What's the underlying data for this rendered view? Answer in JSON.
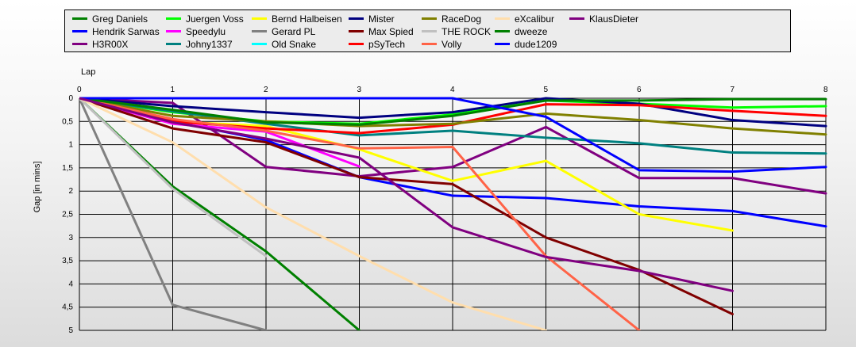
{
  "chart_data": {
    "type": "line",
    "xlabel": "Lap",
    "ylabel": "Gap [in mins]",
    "x": [
      0,
      1,
      2,
      3,
      4,
      5,
      6,
      7,
      8
    ],
    "xlim": [
      0,
      8
    ],
    "ylim": [
      0,
      5
    ],
    "y_inverted": true,
    "x_ticks": [
      "0",
      "1",
      "2",
      "3",
      "4",
      "5",
      "6",
      "7",
      "8"
    ],
    "y_ticks": [
      "0",
      "0,5",
      "1",
      "1,5",
      "2",
      "2,5",
      "3",
      "3,5",
      "4",
      "4,5",
      "5"
    ],
    "grid": true,
    "legend_position": "top",
    "series": [
      {
        "name": "Greg Daniels",
        "color": "#008000",
        "values": [
          0,
          1.9,
          3.3,
          5.0,
          null,
          null,
          null,
          null,
          null
        ]
      },
      {
        "name": "Hendrik Sarwas",
        "color": "#0000ff",
        "values": [
          0,
          0.5,
          0.9,
          1.7,
          2.1,
          2.15,
          2.33,
          2.43,
          2.76
        ]
      },
      {
        "name": "H3R00X",
        "color": "#800080",
        "values": [
          0,
          0.1,
          1.48,
          1.68,
          1.48,
          0.62,
          1.72,
          1.72,
          2.05
        ]
      },
      {
        "name": "Juergen Voss",
        "color": "#00ff00",
        "values": [
          0,
          0.3,
          0.5,
          0.55,
          0.35,
          0.05,
          0.12,
          0.2,
          0.17
        ]
      },
      {
        "name": "Speedylu",
        "color": "#ff00ff",
        "values": [
          0,
          0.55,
          0.72,
          1.47,
          null,
          null,
          null,
          null,
          null
        ]
      },
      {
        "name": "Johny1337",
        "color": "#008080",
        "values": [
          0,
          0.28,
          0.55,
          0.8,
          0.7,
          0.85,
          0.97,
          1.17,
          1.19
        ]
      },
      {
        "name": "Bernd Halbeisen",
        "color": "#ffff00",
        "values": [
          0,
          0.5,
          0.6,
          1.1,
          1.78,
          1.35,
          2.5,
          2.85,
          null
        ]
      },
      {
        "name": "Gerard PL",
        "color": "#808080",
        "values": [
          0,
          4.45,
          5.0,
          null,
          null,
          null,
          null,
          null,
          null
        ]
      },
      {
        "name": "Old Snake",
        "color": "#00ffff",
        "values": [
          0,
          null,
          null,
          null,
          null,
          null,
          null,
          null,
          null
        ]
      },
      {
        "name": "Mister",
        "color": "#000080",
        "values": [
          0,
          0.17,
          0.3,
          0.42,
          0.3,
          0.0,
          0.12,
          0.47,
          0.6
        ]
      },
      {
        "name": "Max Spied",
        "color": "#800000",
        "values": [
          0,
          0.65,
          0.95,
          1.7,
          1.85,
          3.0,
          3.7,
          4.65,
          null
        ]
      },
      {
        "name": "pSyTech",
        "color": "#ff0000",
        "values": [
          0,
          0.5,
          0.65,
          0.75,
          0.57,
          0.13,
          0.15,
          0.27,
          0.38
        ]
      },
      {
        "name": "RaceDog",
        "color": "#808000",
        "values": [
          0,
          0.38,
          0.5,
          0.6,
          0.55,
          0.33,
          0.47,
          0.65,
          0.78
        ]
      },
      {
        "name": "THE ROCK",
        "color": "#c0c0c0",
        "values": [
          0,
          1.95,
          3.4,
          null,
          null,
          null,
          null,
          null,
          null
        ]
      },
      {
        "name": "Volly",
        "color": "#ff6347",
        "values": [
          0,
          0.45,
          0.7,
          1.08,
          1.05,
          3.4,
          5.0,
          null,
          null
        ]
      },
      {
        "name": "eXcalibur",
        "color": "#ffdead",
        "values": [
          0,
          0.95,
          2.35,
          3.4,
          4.4,
          5.0,
          null,
          null,
          null
        ]
      },
      {
        "name": "dweeze",
        "color": "#008000",
        "values": [
          0,
          0.25,
          0.52,
          0.57,
          0.38,
          0.05,
          0.05,
          0.02,
          0.02
        ]
      },
      {
        "name": "dude1209",
        "color": "#0000ff",
        "values": [
          0,
          0.0,
          0.0,
          0.0,
          0.0,
          0.4,
          1.55,
          1.58,
          1.48
        ]
      },
      {
        "name": "KlausDieter",
        "color": "#800080",
        "values": [
          0,
          0.52,
          0.87,
          1.28,
          2.78,
          3.42,
          3.72,
          4.15,
          null
        ]
      }
    ]
  }
}
